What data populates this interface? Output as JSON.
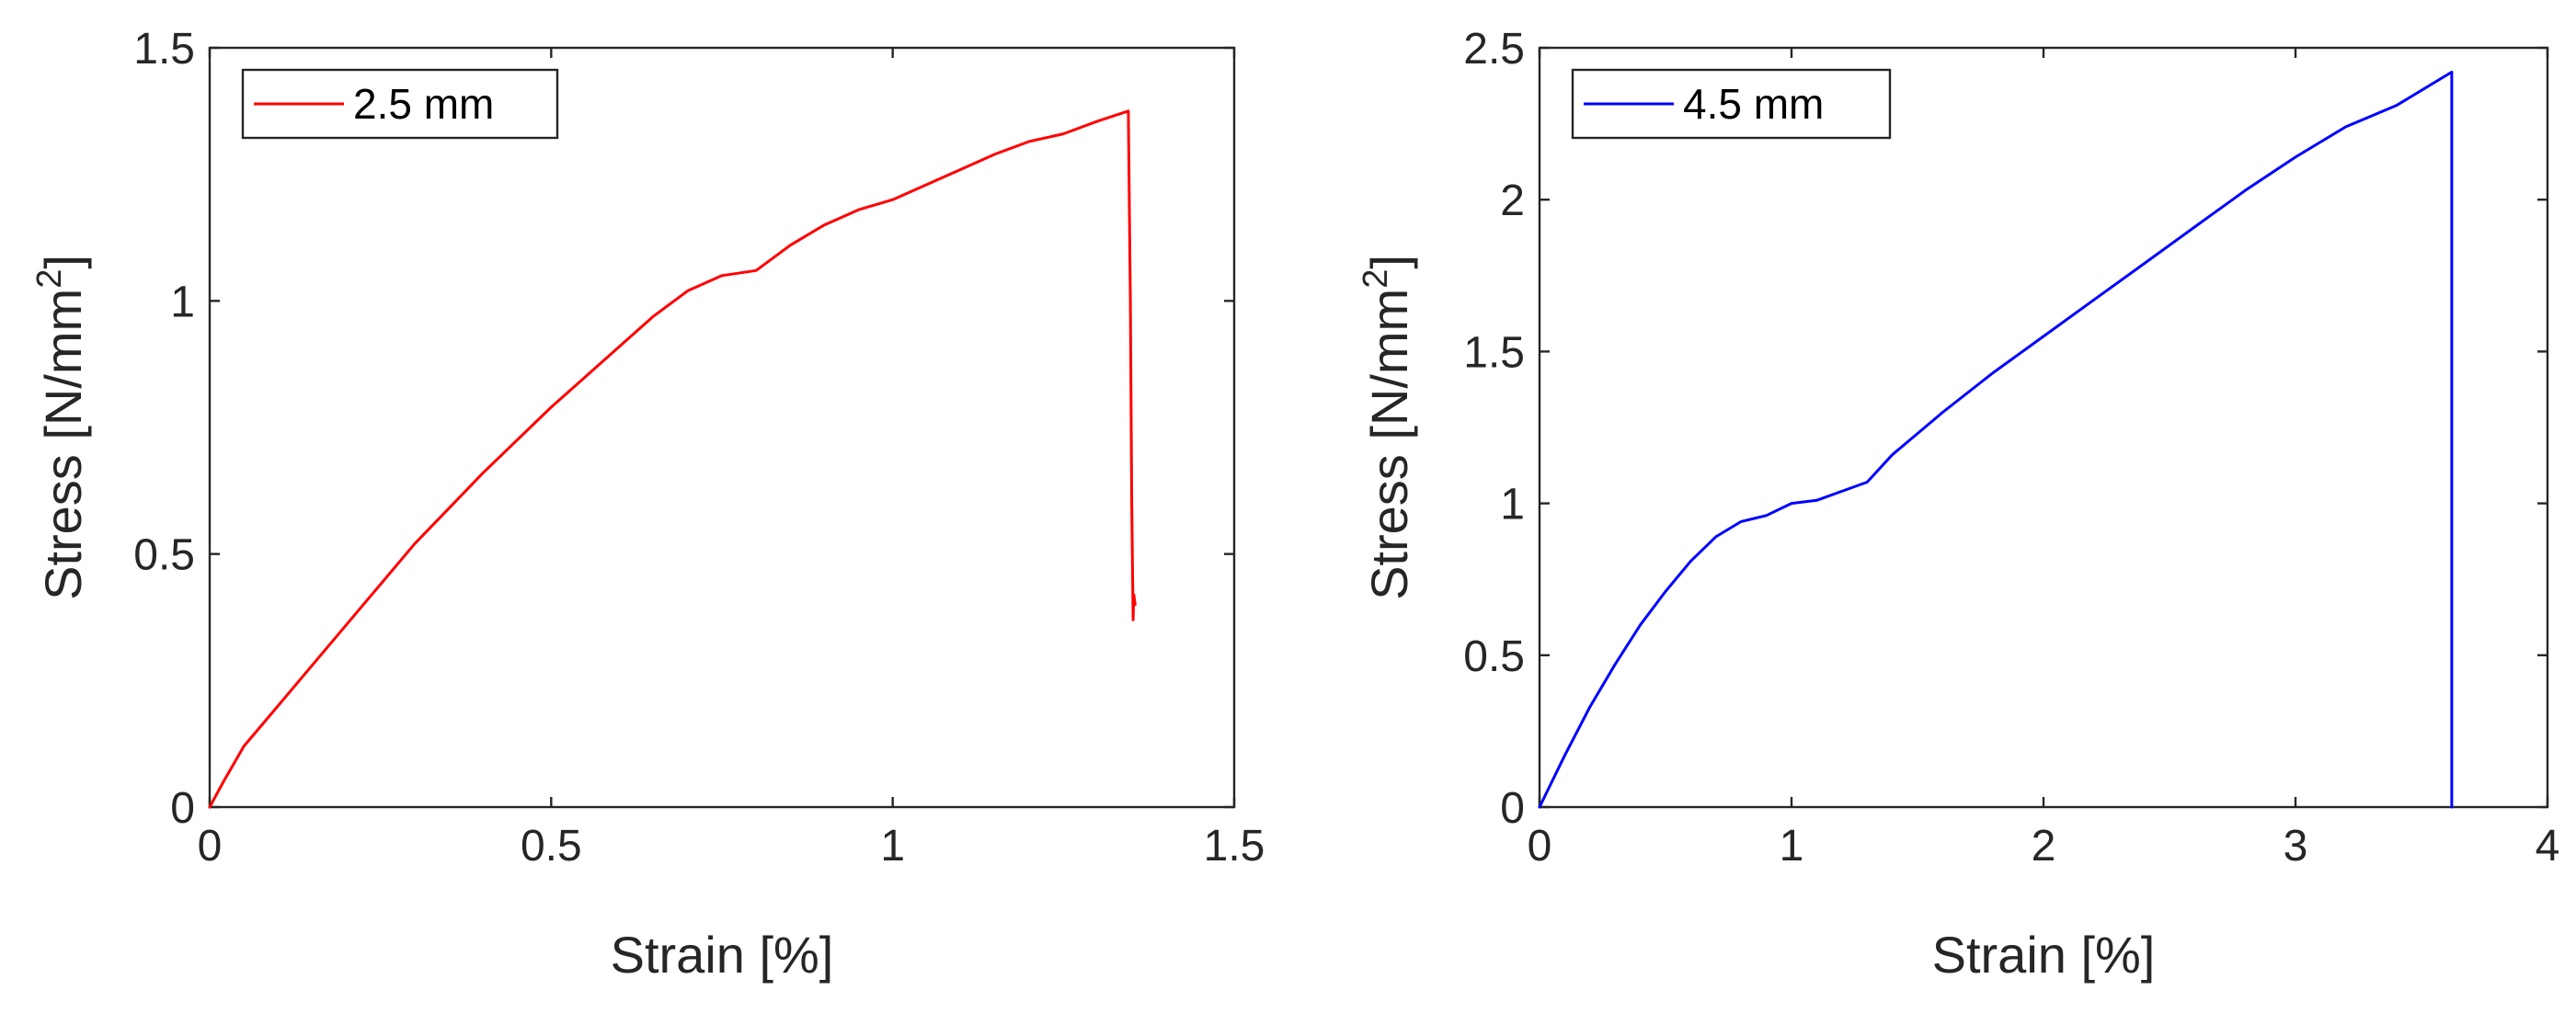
{
  "chart_data": [
    {
      "type": "line",
      "xlabel": "Strain [%]",
      "ylabel": "Stress [N/mm",
      "ylabel_sup": "2",
      "ylabel_end": "]",
      "xlim": [
        0,
        1.5
      ],
      "ylim": [
        0,
        1.5
      ],
      "xticks": [
        0,
        0.5,
        1,
        1.5
      ],
      "xtick_labels": [
        "0",
        "0.5",
        "1",
        "1.5"
      ],
      "yticks": [
        0,
        0.5,
        1,
        1.5
      ],
      "ytick_labels": [
        "0",
        "0.5",
        "1",
        "1.5"
      ],
      "grid": false,
      "legend": "top-left",
      "series": [
        {
          "name": "2.5 mm",
          "color": "#ff0000",
          "x": [
            0,
            0.02,
            0.05,
            0.1,
            0.15,
            0.2,
            0.3,
            0.4,
            0.5,
            0.6,
            0.65,
            0.7,
            0.75,
            0.8,
            0.85,
            0.9,
            0.95,
            1.0,
            1.05,
            1.1,
            1.15,
            1.2,
            1.25,
            1.3,
            1.345,
            1.348,
            1.35,
            1.352,
            1.353,
            1.355
          ],
          "y": [
            0,
            0.05,
            0.12,
            0.2,
            0.28,
            0.36,
            0.52,
            0.66,
            0.79,
            0.91,
            0.97,
            1.02,
            1.05,
            1.06,
            1.11,
            1.15,
            1.18,
            1.2,
            1.23,
            1.26,
            1.29,
            1.315,
            1.33,
            1.355,
            1.375,
            1.0,
            0.6,
            0.37,
            0.42,
            0.4
          ]
        }
      ]
    },
    {
      "type": "line",
      "xlabel": "Strain [%]",
      "ylabel": "Stress [N/mm",
      "ylabel_sup": "2",
      "ylabel_end": "]",
      "xlim": [
        0,
        4
      ],
      "ylim": [
        0,
        2.5
      ],
      "xticks": [
        0,
        1,
        2,
        3,
        4
      ],
      "xtick_labels": [
        "0",
        "1",
        "2",
        "3",
        "4"
      ],
      "yticks": [
        0,
        0.5,
        1,
        1.5,
        2,
        2.5
      ],
      "ytick_labels": [
        "0",
        "0.5",
        "1",
        "1.5",
        "2",
        "2.5"
      ],
      "grid": false,
      "legend": "top-left",
      "series": [
        {
          "name": "4.5 mm",
          "color": "#0000ff",
          "x": [
            0,
            0.1,
            0.2,
            0.3,
            0.4,
            0.5,
            0.6,
            0.7,
            0.8,
            0.9,
            1.0,
            1.1,
            1.2,
            1.3,
            1.4,
            1.5,
            1.6,
            1.8,
            2.0,
            2.2,
            2.4,
            2.6,
            2.8,
            3.0,
            3.2,
            3.4,
            3.62,
            3.62
          ],
          "y": [
            0,
            0.17,
            0.33,
            0.47,
            0.6,
            0.71,
            0.81,
            0.89,
            0.94,
            0.96,
            1.0,
            1.01,
            1.04,
            1.07,
            1.16,
            1.23,
            1.3,
            1.43,
            1.55,
            1.67,
            1.79,
            1.91,
            2.03,
            2.14,
            2.24,
            2.31,
            2.42,
            0
          ]
        }
      ]
    }
  ]
}
